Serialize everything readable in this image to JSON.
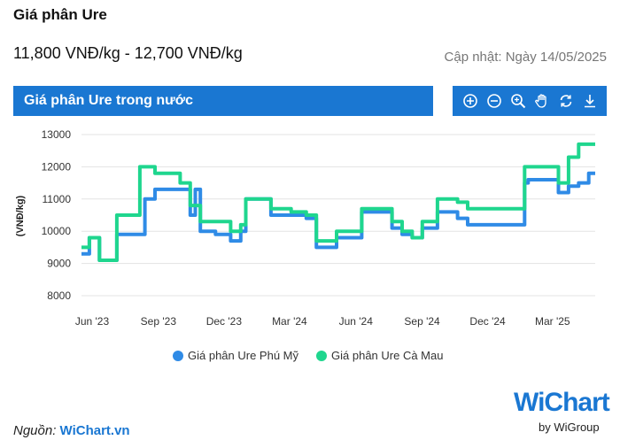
{
  "header": {
    "title": "Giá phân Ure",
    "price_range": "11,800 VNĐ/kg - 12,700 VNĐ/kg",
    "updated": "Cập nhật: Ngày 14/05/2025"
  },
  "panel": {
    "title": "Giá phân Ure trong nước"
  },
  "toolbar": {
    "icons": [
      "zoom-in-icon",
      "zoom-out-icon",
      "magnify-icon",
      "pan-hand-icon",
      "reset-icon",
      "download-icon"
    ]
  },
  "colors": {
    "accent": "#1a77d2",
    "series_phu_my": "#2f8be6",
    "series_ca_mau": "#1fd68e"
  },
  "chart_data": {
    "type": "line",
    "ylabel": "(VNĐ/kg)",
    "ylim": [
      8000,
      13000
    ],
    "yticks": [
      8000,
      9000,
      10000,
      11000,
      12000,
      13000
    ],
    "xticks": [
      {
        "label": "Jun '23",
        "date": "2023-06-01"
      },
      {
        "label": "Sep '23",
        "date": "2023-09-01"
      },
      {
        "label": "Dec '23",
        "date": "2023-12-01"
      },
      {
        "label": "Mar '24",
        "date": "2024-03-01"
      },
      {
        "label": "Jun '24",
        "date": "2024-06-01"
      },
      {
        "label": "Sep '24",
        "date": "2024-09-01"
      },
      {
        "label": "Dec '24",
        "date": "2024-12-01"
      },
      {
        "label": "Mar '25",
        "date": "2025-03-01"
      }
    ],
    "xlim": [
      "2023-06-01",
      "2025-05-14"
    ],
    "grid": true,
    "legend_position": "bottom",
    "series": [
      {
        "name": "Giá phân Ure Phú Mỹ",
        "color": "#2f8be6",
        "points": [
          [
            "2023-06-01",
            9300
          ],
          [
            "2023-06-12",
            9300
          ],
          [
            "2023-06-12",
            9800
          ],
          [
            "2023-06-26",
            9800
          ],
          [
            "2023-06-26",
            9100
          ],
          [
            "2023-07-20",
            9100
          ],
          [
            "2023-07-20",
            9900
          ],
          [
            "2023-08-28",
            9900
          ],
          [
            "2023-08-28",
            11000
          ],
          [
            "2023-09-11",
            11000
          ],
          [
            "2023-09-11",
            11300
          ],
          [
            "2023-10-30",
            11300
          ],
          [
            "2023-10-30",
            10500
          ],
          [
            "2023-11-06",
            10500
          ],
          [
            "2023-11-06",
            11300
          ],
          [
            "2023-11-13",
            11300
          ],
          [
            "2023-11-13",
            10000
          ],
          [
            "2023-12-04",
            10000
          ],
          [
            "2023-12-04",
            9900
          ],
          [
            "2023-12-25",
            9900
          ],
          [
            "2023-12-25",
            9700
          ],
          [
            "2024-01-08",
            9700
          ],
          [
            "2024-01-08",
            10000
          ],
          [
            "2024-01-15",
            10000
          ],
          [
            "2024-01-15",
            11000
          ],
          [
            "2024-02-19",
            11000
          ],
          [
            "2024-02-19",
            10500
          ],
          [
            "2024-04-08",
            10500
          ],
          [
            "2024-04-08",
            10400
          ],
          [
            "2024-04-22",
            10400
          ],
          [
            "2024-04-22",
            9500
          ],
          [
            "2024-05-20",
            9500
          ],
          [
            "2024-05-20",
            9800
          ],
          [
            "2024-06-24",
            9800
          ],
          [
            "2024-06-24",
            10600
          ],
          [
            "2024-08-05",
            10600
          ],
          [
            "2024-08-05",
            10100
          ],
          [
            "2024-08-19",
            10100
          ],
          [
            "2024-08-19",
            9900
          ],
          [
            "2024-09-02",
            9900
          ],
          [
            "2024-09-02",
            9800
          ],
          [
            "2024-09-16",
            9800
          ],
          [
            "2024-09-16",
            10100
          ],
          [
            "2024-10-07",
            10100
          ],
          [
            "2024-10-07",
            10600
          ],
          [
            "2024-11-04",
            10600
          ],
          [
            "2024-11-04",
            10400
          ],
          [
            "2024-11-18",
            10400
          ],
          [
            "2024-11-18",
            10200
          ],
          [
            "2025-02-05",
            10200
          ],
          [
            "2025-02-05",
            11500
          ],
          [
            "2025-02-10",
            11500
          ],
          [
            "2025-02-10",
            11600
          ],
          [
            "2025-03-24",
            11600
          ],
          [
            "2025-03-24",
            11200
          ],
          [
            "2025-04-07",
            11200
          ],
          [
            "2025-04-07",
            11400
          ],
          [
            "2025-04-21",
            11400
          ],
          [
            "2025-04-21",
            11500
          ],
          [
            "2025-05-05",
            11500
          ],
          [
            "2025-05-05",
            11800
          ],
          [
            "2025-05-14",
            11800
          ]
        ]
      },
      {
        "name": "Giá phân Ure Cà Mau",
        "color": "#1fd68e",
        "points": [
          [
            "2023-06-01",
            9500
          ],
          [
            "2023-06-12",
            9500
          ],
          [
            "2023-06-12",
            9800
          ],
          [
            "2023-06-26",
            9800
          ],
          [
            "2023-06-26",
            9100
          ],
          [
            "2023-07-20",
            9100
          ],
          [
            "2023-07-20",
            10500
          ],
          [
            "2023-08-21",
            10500
          ],
          [
            "2023-08-21",
            12000
          ],
          [
            "2023-09-11",
            12000
          ],
          [
            "2023-09-11",
            11800
          ],
          [
            "2023-10-16",
            11800
          ],
          [
            "2023-10-16",
            11500
          ],
          [
            "2023-10-30",
            11500
          ],
          [
            "2023-10-30",
            10800
          ],
          [
            "2023-11-13",
            10800
          ],
          [
            "2023-11-13",
            10300
          ],
          [
            "2023-12-25",
            10300
          ],
          [
            "2023-12-25",
            10000
          ],
          [
            "2024-01-08",
            10000
          ],
          [
            "2024-01-08",
            10200
          ],
          [
            "2024-01-15",
            10200
          ],
          [
            "2024-01-15",
            11000
          ],
          [
            "2024-02-19",
            11000
          ],
          [
            "2024-02-19",
            10700
          ],
          [
            "2024-03-18",
            10700
          ],
          [
            "2024-03-18",
            10600
          ],
          [
            "2024-04-08",
            10600
          ],
          [
            "2024-04-08",
            10500
          ],
          [
            "2024-04-22",
            10500
          ],
          [
            "2024-04-22",
            9700
          ],
          [
            "2024-05-20",
            9700
          ],
          [
            "2024-05-20",
            10000
          ],
          [
            "2024-06-24",
            10000
          ],
          [
            "2024-06-24",
            10700
          ],
          [
            "2024-08-05",
            10700
          ],
          [
            "2024-08-05",
            10300
          ],
          [
            "2024-08-19",
            10300
          ],
          [
            "2024-08-19",
            10000
          ],
          [
            "2024-09-02",
            10000
          ],
          [
            "2024-09-02",
            9800
          ],
          [
            "2024-09-16",
            9800
          ],
          [
            "2024-09-16",
            10300
          ],
          [
            "2024-10-07",
            10300
          ],
          [
            "2024-10-07",
            11000
          ],
          [
            "2024-11-04",
            11000
          ],
          [
            "2024-11-04",
            10900
          ],
          [
            "2024-11-18",
            10900
          ],
          [
            "2024-11-18",
            10700
          ],
          [
            "2025-02-05",
            10700
          ],
          [
            "2025-02-05",
            12000
          ],
          [
            "2025-03-24",
            12000
          ],
          [
            "2025-03-24",
            11500
          ],
          [
            "2025-04-07",
            11500
          ],
          [
            "2025-04-07",
            12300
          ],
          [
            "2025-04-21",
            12300
          ],
          [
            "2025-04-21",
            12700
          ],
          [
            "2025-05-14",
            12700
          ]
        ]
      }
    ]
  },
  "legend": {
    "items": [
      {
        "label": "Giá phân Ure Phú Mỹ",
        "color": "#2f8be6"
      },
      {
        "label": "Giá phân Ure Cà Mau",
        "color": "#1fd68e"
      }
    ]
  },
  "footer": {
    "source_label": "Nguồn:",
    "source_site": "WiChart.vn",
    "logo_w": "W",
    "logo_rest": "iChart",
    "logo_sub": "by WiGroup"
  }
}
